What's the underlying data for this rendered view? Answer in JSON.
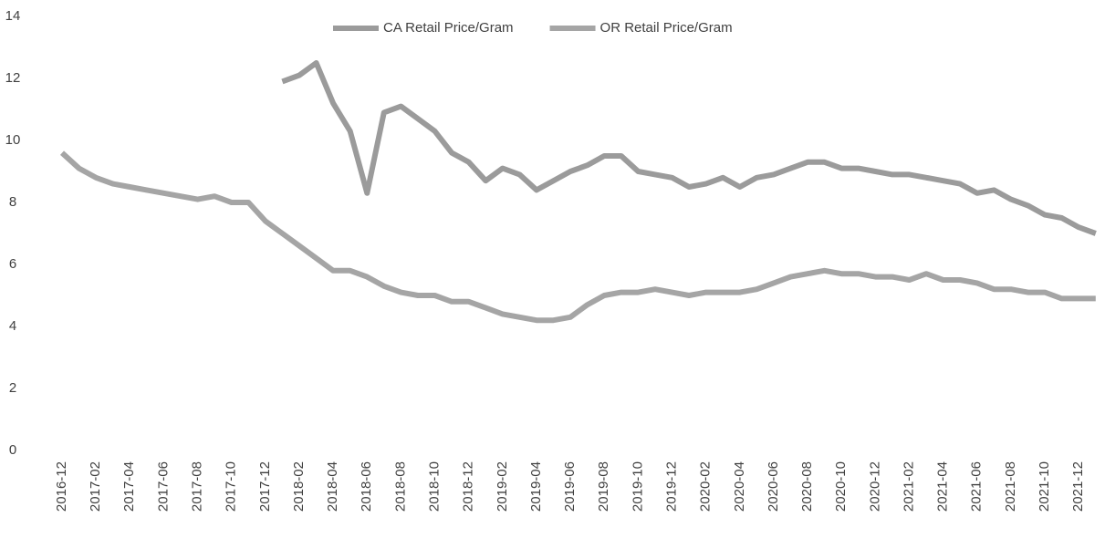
{
  "chart_data": {
    "type": "line",
    "categories": [
      "2016-12",
      null,
      "2017-02",
      null,
      "2017-04",
      null,
      "2017-06",
      null,
      "2017-08",
      null,
      "2017-10",
      null,
      "2017-12",
      null,
      "2018-02",
      null,
      "2018-04",
      null,
      "2018-06",
      null,
      "2018-08",
      null,
      "2018-10",
      null,
      "2018-12",
      null,
      "2019-02",
      null,
      "2019-04",
      null,
      "2019-06",
      null,
      "2019-08",
      null,
      "2019-10",
      null,
      "2019-12",
      null,
      "2020-02",
      null,
      "2020-04",
      null,
      "2020-06",
      null,
      "2020-08",
      null,
      "2020-10",
      null,
      "2020-12",
      null,
      "2021-02",
      null,
      "2021-04",
      null,
      "2021-06",
      null,
      "2021-08",
      null,
      "2021-10",
      null,
      "2021-12",
      null
    ],
    "series": [
      {
        "name": "CA Retail Price/Gram",
        "color": "#9b9b9b",
        "values": [
          null,
          null,
          null,
          null,
          null,
          null,
          null,
          null,
          null,
          null,
          null,
          null,
          null,
          11.9,
          12.1,
          12.5,
          11.2,
          10.3,
          8.3,
          10.9,
          11.1,
          10.7,
          10.3,
          9.6,
          9.3,
          8.7,
          9.1,
          8.9,
          8.4,
          8.7,
          9.0,
          9.2,
          9.5,
          9.5,
          9.0,
          8.9,
          8.8,
          8.5,
          8.6,
          8.8,
          8.5,
          8.8,
          8.9,
          9.1,
          9.3,
          9.3,
          9.1,
          9.1,
          9.0,
          8.9,
          8.9,
          8.8,
          8.7,
          8.6,
          8.3,
          8.4,
          8.1,
          7.9,
          7.6,
          7.5,
          7.2,
          7.0
        ]
      },
      {
        "name": "OR Retail Price/Gram",
        "color": "#a5a5a5",
        "values": [
          9.6,
          9.1,
          8.8,
          8.6,
          8.5,
          8.4,
          8.3,
          8.2,
          8.1,
          8.2,
          8.0,
          8.0,
          7.4,
          7.0,
          6.6,
          6.2,
          5.8,
          5.8,
          5.6,
          5.3,
          5.1,
          5.0,
          5.0,
          4.8,
          4.8,
          4.6,
          4.4,
          4.3,
          4.2,
          4.2,
          4.3,
          4.7,
          5.0,
          5.1,
          5.1,
          5.2,
          5.1,
          5.0,
          5.1,
          5.1,
          5.1,
          5.2,
          5.4,
          5.6,
          5.7,
          5.8,
          5.7,
          5.7,
          5.6,
          5.6,
          5.5,
          5.7,
          5.5,
          5.5,
          5.4,
          5.2,
          5.2,
          5.1,
          5.1,
          4.9,
          4.9,
          4.9
        ]
      }
    ],
    "ylim": [
      0,
      14
    ],
    "yticks": [
      0,
      2,
      4,
      6,
      8,
      10,
      12,
      14
    ],
    "grid": false,
    "legend": "top"
  }
}
